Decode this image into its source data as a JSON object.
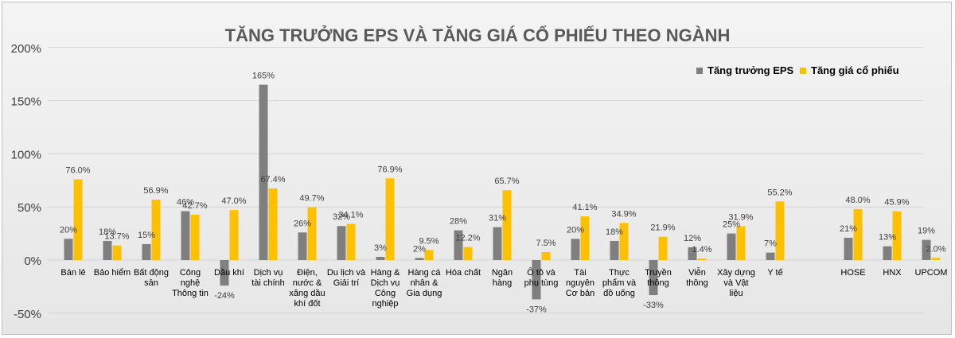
{
  "chart_data": {
    "type": "bar",
    "title": "TĂNG TRƯỞNG EPS VÀ TĂNG GIÁ CỔ PHIẾU THEO NGÀNH",
    "xlabel": "",
    "ylabel": "",
    "ylim": [
      -50,
      200
    ],
    "yticks": [
      -50,
      0,
      50,
      100,
      150,
      200
    ],
    "ytick_labels": [
      "-50%",
      "0%",
      "50%",
      "100%",
      "150%",
      "200%"
    ],
    "grid": true,
    "legend": "top-right",
    "categories": [
      "Bán lẻ",
      "Bảo hiểm",
      "Bất động sản",
      "Công nghệ Thông tin",
      "Dầu khí",
      "Dịch vụ tài chính",
      "Điện, nước & xăng dầu khí đốt",
      "Du lịch và Giải trí",
      "Hàng & Dịch vụ Công nghiệp",
      "Hàng cá nhân & Gia dụng",
      "Hóa chất",
      "Ngân hàng",
      "Ô tô và phụ tùng",
      "Tài nguyên Cơ bản",
      "Thực phẩm và đồ uống",
      "Truyền thông",
      "Viễn thông",
      "Xây dựng và Vật liệu",
      "Y tế",
      "HOSE",
      "HNX",
      "UPCOM"
    ],
    "category_lines": [
      [
        "Bán lẻ"
      ],
      [
        "Bảo hiểm"
      ],
      [
        "Bất động",
        "sản"
      ],
      [
        "Công",
        "nghệ",
        "Thông tin"
      ],
      [
        "Dầu khí"
      ],
      [
        "Dịch vụ",
        "tài chính"
      ],
      [
        "Điện,",
        "nước &",
        "xăng dầu",
        "khí đốt"
      ],
      [
        "Du lịch và",
        "Giải trí"
      ],
      [
        "Hàng &",
        "Dịch vụ",
        "Công",
        "nghiệp"
      ],
      [
        "Hàng cá",
        "nhân &",
        "Gia dụng"
      ],
      [
        "Hóa chất"
      ],
      [
        "Ngân",
        "hàng"
      ],
      [
        "Ô tô và",
        "phụ tùng"
      ],
      [
        "Tài",
        "nguyên",
        "Cơ bản"
      ],
      [
        "Thực",
        "phẩm và",
        "đồ uống"
      ],
      [
        "Truyền",
        "thông"
      ],
      [
        "Viễn",
        "thông"
      ],
      [
        "Xây dựng",
        "và Vật",
        "liệu"
      ],
      [
        "Y tế"
      ],
      [
        "HOSE"
      ],
      [
        "HNX"
      ],
      [
        "UPCOM"
      ]
    ],
    "series": [
      {
        "name": "Tăng trưởng EPS",
        "color": "#7f7f7f",
        "values": [
          20,
          18,
          15,
          46,
          -24,
          165,
          26,
          32,
          3,
          2,
          28,
          31,
          -37,
          20,
          18,
          -33,
          12,
          25,
          7,
          21,
          13,
          19
        ],
        "labels": [
          "20%",
          "18%",
          "15%",
          "46%",
          "-24%",
          "165%",
          "26%",
          "32%",
          "3%",
          "2%",
          "28%",
          "31%",
          "-37%",
          "20%",
          "18%",
          "-33%",
          "12%",
          "25%",
          "7%",
          "21%",
          "13%",
          "19%"
        ]
      },
      {
        "name": "Tăng giá cổ phiếu",
        "color": "#ffc000",
        "values": [
          76.0,
          13.7,
          56.9,
          42.7,
          47.0,
          67.4,
          49.7,
          34.1,
          76.9,
          9.5,
          12.2,
          65.7,
          7.5,
          41.1,
          34.9,
          21.9,
          1.4,
          31.9,
          55.2,
          48.0,
          45.9,
          2.0
        ],
        "labels": [
          "76.0%",
          "13.7%",
          "56.9%",
          "42.7%",
          "47.0%",
          "67.4%",
          "49.7%",
          "34.1%",
          "76.9%",
          "9.5%",
          "12.2%",
          "65.7%",
          "7.5%",
          "41.1%",
          "34.9%",
          "21.9%",
          "1.4%",
          "31.9%",
          "55.2%",
          "48.0%",
          "45.9%",
          "2.0%"
        ]
      }
    ]
  }
}
